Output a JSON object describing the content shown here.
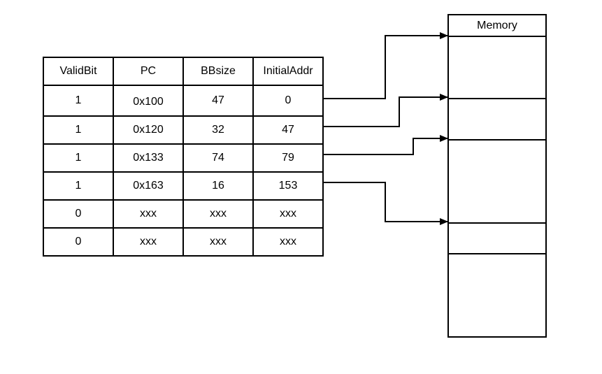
{
  "table": {
    "headers": [
      "ValidBit",
      "PC",
      "BBsize",
      "InitialAddr"
    ],
    "rows": [
      [
        "1",
        "0x100",
        "47",
        "0"
      ],
      [
        "1",
        "0x120",
        "32",
        "47"
      ],
      [
        "1",
        "0x133",
        "74",
        "79"
      ],
      [
        "1",
        "0x163",
        "16",
        "153"
      ],
      [
        "0",
        "xxx",
        "xxx",
        "xxx"
      ],
      [
        "0",
        "xxx",
        "xxx",
        "xxx"
      ]
    ]
  },
  "memory": {
    "title": "Memory"
  }
}
